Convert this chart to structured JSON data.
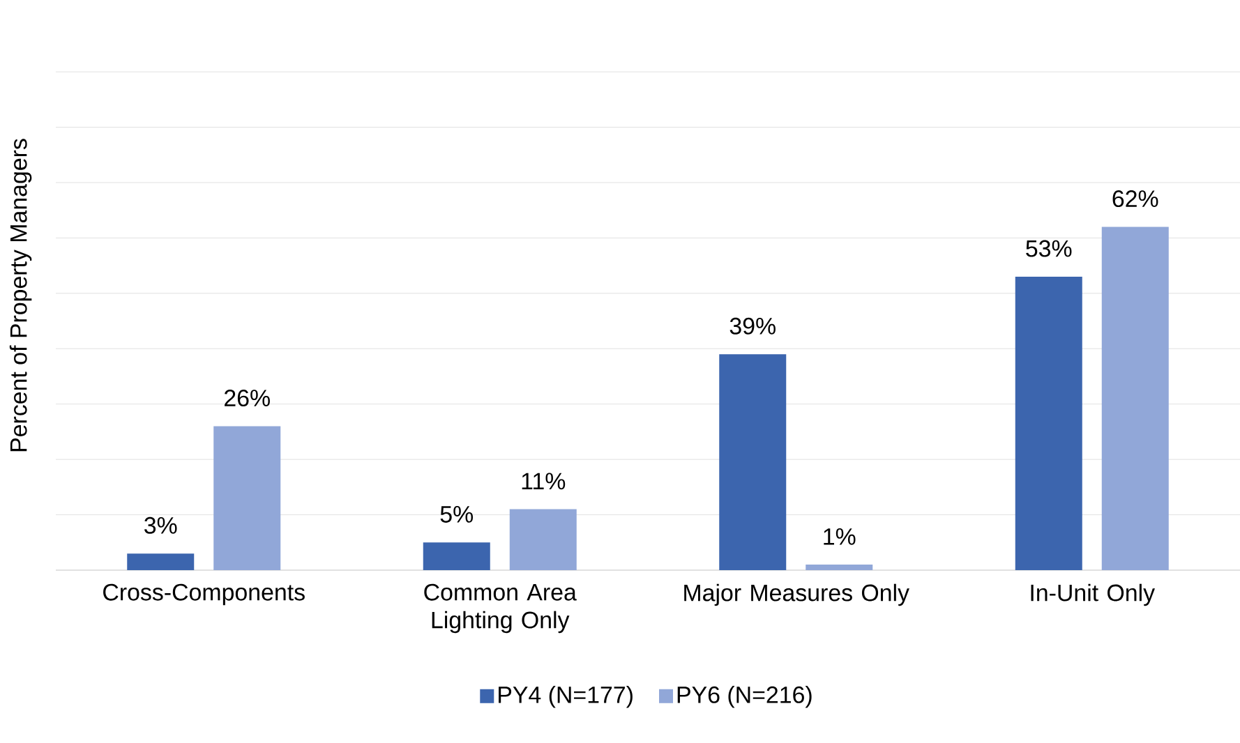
{
  "chart_data": {
    "type": "bar",
    "ylabel": "Percent of Property Managers",
    "categories": [
      "Cross-Components",
      "Common Area Lighting Only",
      "Major Measures Only",
      "In-Unit Only"
    ],
    "series": [
      {
        "name": "PY4 (N=177)",
        "color": "#3c65ae",
        "values": [
          3,
          5,
          39,
          53
        ],
        "value_labels": [
          "3%",
          "5%",
          "39%",
          "53%"
        ]
      },
      {
        "name": "PY6 (N=216)",
        "color": "#91a7d8",
        "values": [
          26,
          11,
          1,
          62
        ],
        "value_labels": [
          "26%",
          "11%",
          "1%",
          "62%"
        ]
      }
    ],
    "grid": "y",
    "legend": "bottom",
    "tick_labels": "x"
  }
}
